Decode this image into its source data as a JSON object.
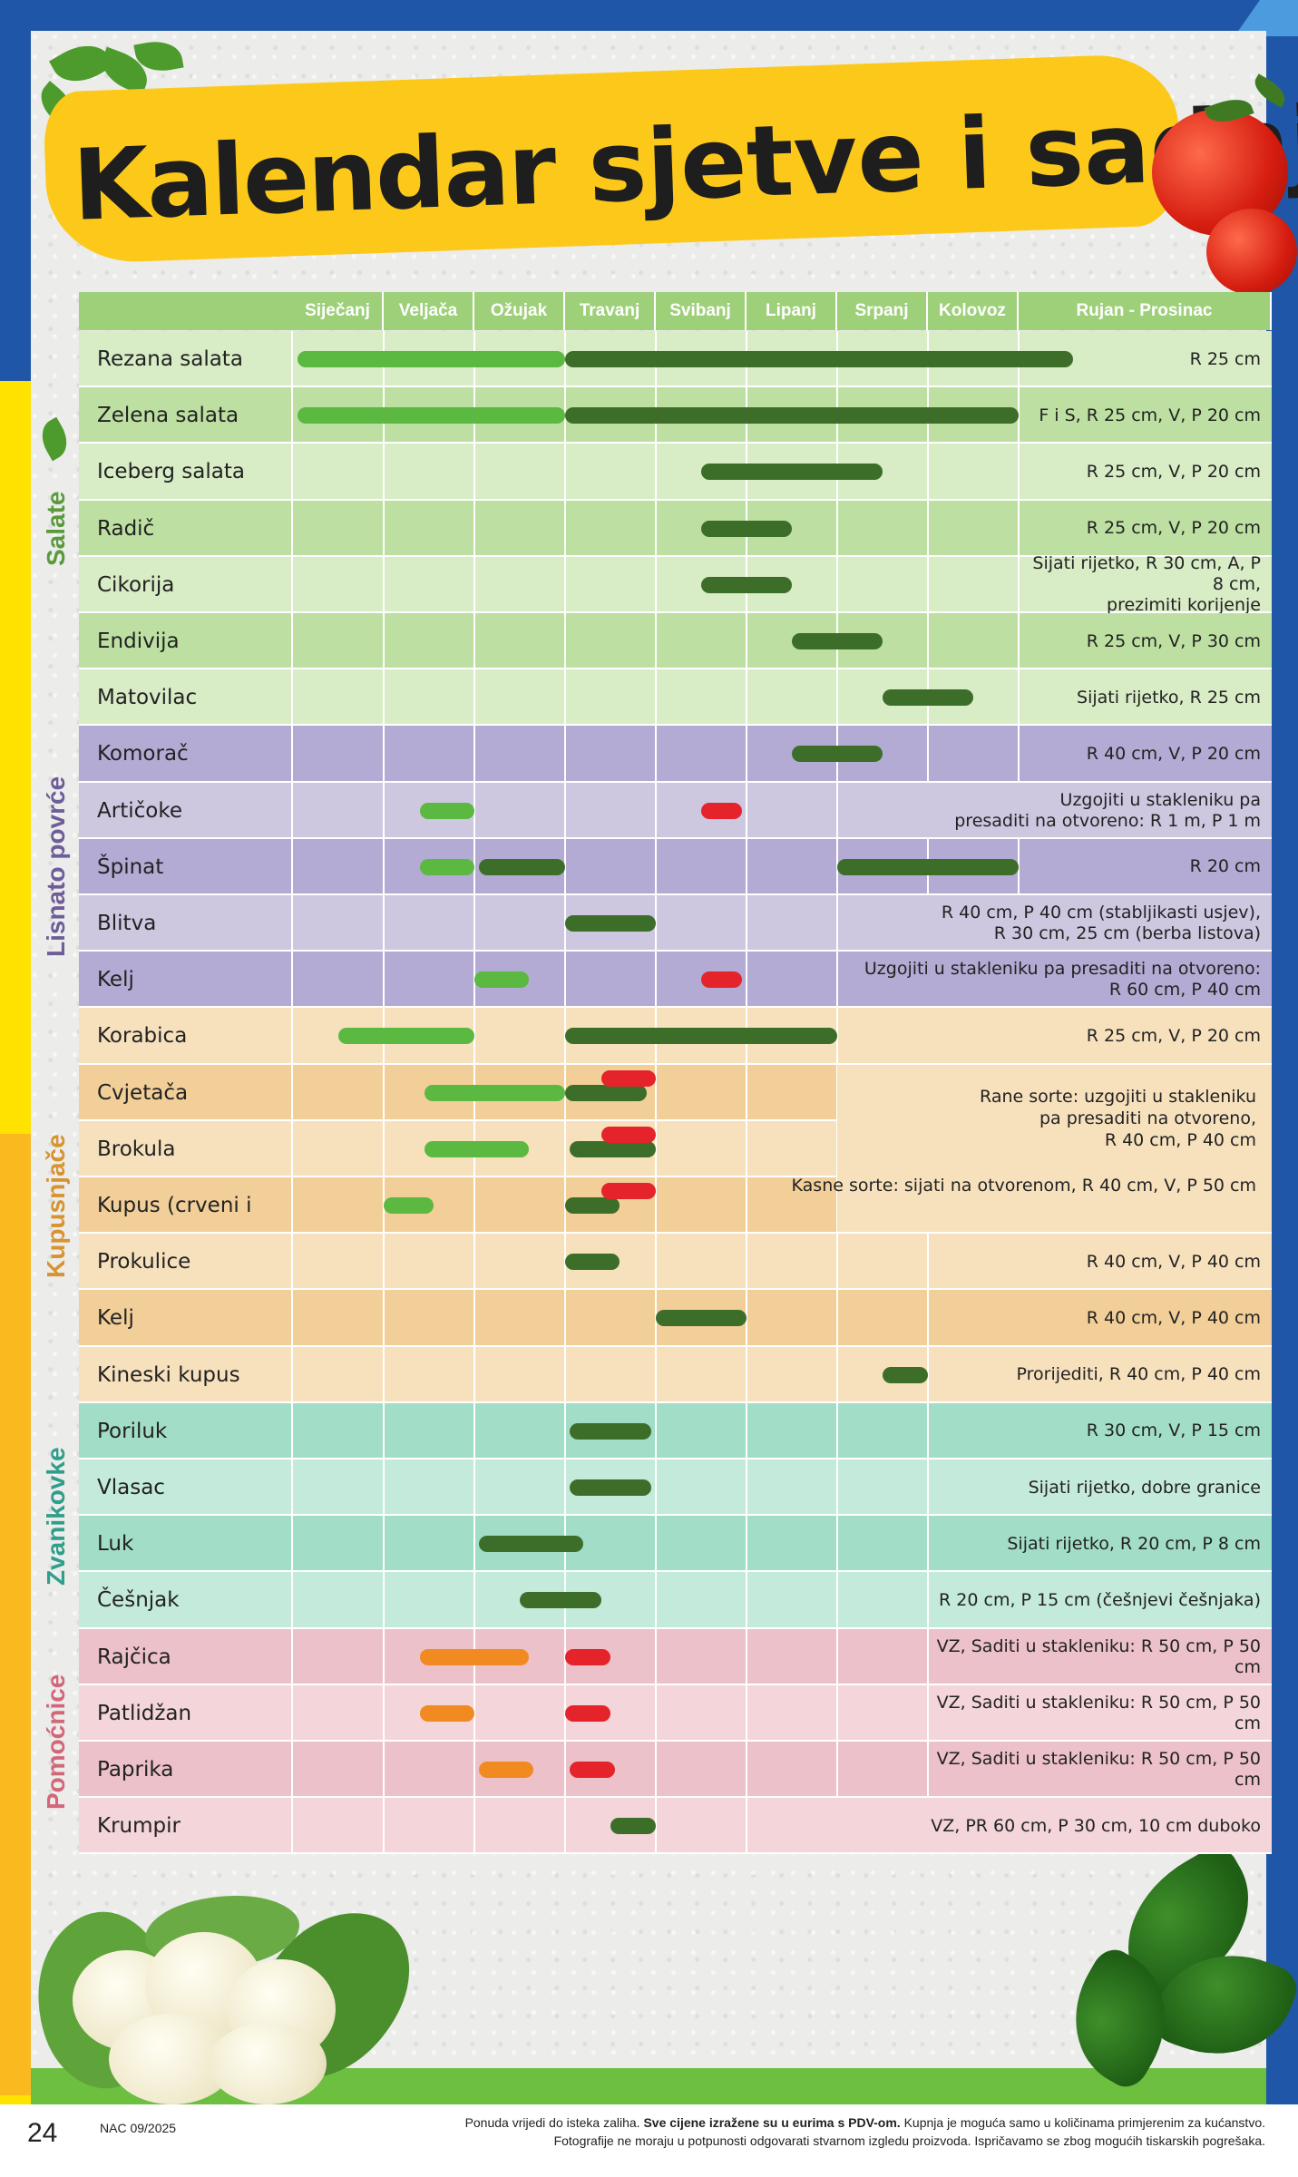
{
  "title": {
    "bold": "Kalendar",
    "rest": "sjetve i sadnje"
  },
  "months": [
    "Siječanj",
    "Veljača",
    "Ožujak",
    "Travanj",
    "Svibanj",
    "Lipanj",
    "Srpanj",
    "Kolovoz",
    "Rujan - Prosinac"
  ],
  "categories": [
    {
      "label": "Salate",
      "color": "#5a9a3c"
    },
    {
      "label": "Lisnato povrće",
      "color": "#6e5d98"
    },
    {
      "label": "Kupusnjače",
      "color": "#d7932f"
    },
    {
      "label": "Zvanikovke",
      "color": "#2f9e8a"
    },
    {
      "label": "Pomoćnice",
      "color": "#d2677a"
    }
  ],
  "rows": [
    {
      "name": "Rezana salata",
      "note": "R 25 cm",
      "bars": [
        [
          0.05,
          3.0,
          "lg"
        ],
        [
          3.0,
          8.6,
          "dg"
        ]
      ]
    },
    {
      "name": "Zelena salata",
      "note": "F i S, R 25 cm, V, P 20 cm",
      "bars": [
        [
          0.05,
          3.0,
          "lg"
        ],
        [
          3.0,
          8.0,
          "dg"
        ]
      ]
    },
    {
      "name": "Iceberg salata",
      "note": "R 25 cm, V, P 20 cm",
      "bars": [
        [
          4.5,
          6.5,
          "dg"
        ]
      ]
    },
    {
      "name": "Radič",
      "note": "R 25 cm, V, P 20 cm",
      "bars": [
        [
          4.5,
          5.5,
          "dg"
        ]
      ]
    },
    {
      "name": "Cikorija",
      "note": "Sijati rijetko, R 30 cm, A, P 8 cm,\nprezimiti korijenje",
      "bars": [
        [
          4.5,
          5.5,
          "dg"
        ]
      ]
    },
    {
      "name": "Endivija",
      "note": "R 25 cm, V, P 30 cm",
      "bars": [
        [
          5.5,
          6.5,
          "dg"
        ]
      ]
    },
    {
      "name": "Matovilac",
      "note": "Sijati rijetko, R 25 cm",
      "bars": [
        [
          6.5,
          7.5,
          "dg"
        ]
      ]
    },
    {
      "name": "Komorač",
      "note": "R 40 cm, V, P 20 cm",
      "bars": [
        [
          5.5,
          6.5,
          "dg"
        ]
      ]
    },
    {
      "name": "Artičoke",
      "note": "Uzgojiti u stakleniku pa\npresaditi na otvoreno: R 1 m, P 1 m",
      "bars": [
        [
          1.4,
          2.0,
          "lg"
        ],
        [
          4.5,
          4.95,
          "rd"
        ]
      ]
    },
    {
      "name": "Špinat",
      "note": "R 20 cm",
      "bars": [
        [
          1.4,
          2.0,
          "lg"
        ],
        [
          2.05,
          3.0,
          "dg"
        ],
        [
          6.0,
          8.0,
          "dg"
        ]
      ]
    },
    {
      "name": "Blitva",
      "note": "R 40 cm, P 40 cm (stabljikasti usjev),\nR 30 cm, 25 cm (berba listova)",
      "bars": [
        [
          3.0,
          4.0,
          "dg"
        ]
      ]
    },
    {
      "name": "Kelj",
      "note": "Uzgojiti u stakleniku pa presaditi na otvoreno:\nR 60 cm, P 40 cm",
      "bars": [
        [
          2.0,
          2.6,
          "lg"
        ],
        [
          4.5,
          4.95,
          "rd"
        ]
      ]
    },
    {
      "name": "Korabica",
      "note": "R 25 cm, V, P 20 cm",
      "bars": [
        [
          0.5,
          2.0,
          "lg"
        ],
        [
          3.0,
          6.0,
          "dg"
        ]
      ]
    },
    {
      "name": "Cvjetača",
      "note": "",
      "bars": [
        [
          1.45,
          3.0,
          "lg"
        ],
        [
          3.0,
          3.9,
          "dg"
        ],
        [
          3.4,
          4.0,
          "rd",
          -16
        ]
      ]
    },
    {
      "name": "Brokula",
      "note": "",
      "bars": [
        [
          1.45,
          2.6,
          "lg"
        ],
        [
          3.05,
          4.0,
          "dg"
        ],
        [
          3.4,
          4.0,
          "rd",
          -16
        ]
      ]
    },
    {
      "name": "Kupus (crveni i bijeli)",
      "note": "",
      "bars": [
        [
          1.0,
          1.55,
          "lg"
        ],
        [
          3.0,
          3.6,
          "dg"
        ],
        [
          3.4,
          4.0,
          "rd",
          -16
        ]
      ]
    },
    {
      "name": "Prokulice",
      "note": "R 40 cm, V, P 40 cm",
      "bars": [
        [
          3.0,
          3.6,
          "dg"
        ]
      ]
    },
    {
      "name": "Kelj",
      "note": "R 40 cm, V, P 40 cm",
      "bars": [
        [
          4.0,
          5.0,
          "dg"
        ]
      ]
    },
    {
      "name": "Kineski kupus",
      "note": "Prorijediti, R 40 cm, P 40 cm",
      "bars": [
        [
          6.5,
          7.0,
          "dg"
        ]
      ]
    },
    {
      "name": "Poriluk",
      "note": "R 30 cm, V, P 15 cm",
      "bars": [
        [
          3.05,
          3.95,
          "dg"
        ]
      ]
    },
    {
      "name": "Vlasac",
      "note": "Sijati rijetko, dobre granice",
      "bars": [
        [
          3.05,
          3.95,
          "dg"
        ]
      ]
    },
    {
      "name": "Luk",
      "note": "Sijati rijetko, R 20 cm, P 8 cm",
      "bars": [
        [
          2.05,
          3.2,
          "dg"
        ]
      ]
    },
    {
      "name": "Češnjak",
      "note": "R 20 cm, P 15 cm (češnjevi češnjaka)",
      "bars": [
        [
          2.5,
          3.4,
          "dg"
        ]
      ]
    },
    {
      "name": "Rajčica",
      "note": "VZ, Saditi u stakleniku: R 50 cm, P 50 cm",
      "bars": [
        [
          1.4,
          2.6,
          "or"
        ],
        [
          3.0,
          3.5,
          "rd"
        ]
      ]
    },
    {
      "name": "Patlidžan",
      "note": "VZ, Saditi u stakleniku: R 50 cm, P 50 cm",
      "bars": [
        [
          1.4,
          2.0,
          "or"
        ],
        [
          3.0,
          3.5,
          "rd"
        ]
      ]
    },
    {
      "name": "Paprika",
      "note": "VZ, Saditi u stakleniku: R 50 cm, P 50 cm",
      "bars": [
        [
          2.05,
          2.65,
          "or"
        ],
        [
          3.05,
          3.55,
          "rd"
        ]
      ]
    },
    {
      "name": "Krumpir",
      "note": "VZ, PR 60 cm, P 30 cm, 10 cm duboko",
      "bars": [
        [
          3.5,
          4.0,
          "dg"
        ]
      ]
    }
  ],
  "brassica_note": {
    "early": "Rane sorte: uzgojiti u stakleniku\npa presaditi na otvoreno,\nR 40 cm, P 40 cm",
    "late": "Kasne sorte: sijati na otvorenom, R 40 cm, V, P 50 cm"
  },
  "footer": {
    "page": "24",
    "issue": "NAC 09/2025",
    "line1_a": "Ponuda vrijedi do isteka zaliha. ",
    "line1_b": "Sve cijene izražene su u eurima s PDV-om.",
    "line1_c": " Kupnja je moguća samo u količinama primjerenim za kućanstvo.",
    "line2": "Fotografije ne moraju u potpunosti odgovarati stvarnom izgledu proizvoda. Ispričavamo se zbog mogućih tiskarskih pogrešaka."
  }
}
